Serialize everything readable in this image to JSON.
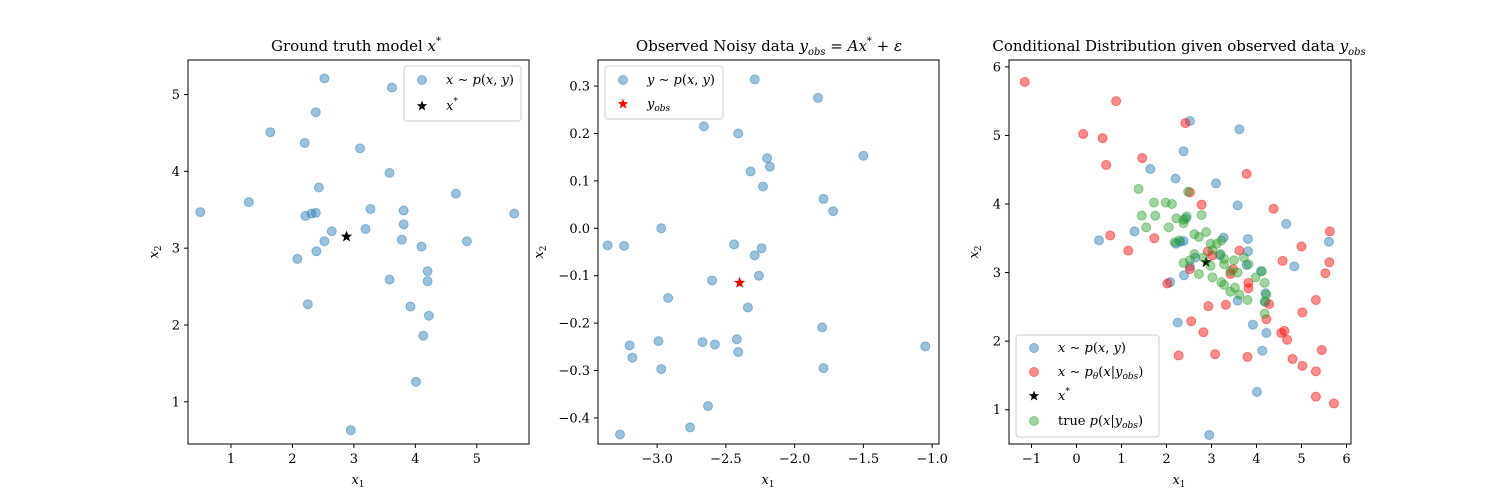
{
  "figure": {
    "background": "#ffffff"
  },
  "chart_data": [
    {
      "type": "scatter",
      "title": "Ground truth model x*",
      "xlabel": "x1",
      "ylabel": "x2",
      "xlim": [
        0.3,
        5.85
      ],
      "ylim": [
        0.45,
        5.45
      ],
      "xticks": [
        1,
        2,
        3,
        4,
        5
      ],
      "yticks": [
        1,
        2,
        3,
        4,
        5
      ],
      "xtick_labels": [
        "1",
        "2",
        "3",
        "4",
        "5"
      ],
      "ytick_labels": [
        "1",
        "2",
        "3",
        "4",
        "5"
      ],
      "legend_position": "top-right",
      "series": [
        {
          "name": "x ~ p(x, y)",
          "marker": "circle",
          "color": "#1f77b4",
          "alpha": 0.45,
          "points": [
            [
              2.52,
              5.21
            ],
            [
              3.62,
              5.09
            ],
            [
              2.38,
              4.77
            ],
            [
              1.64,
              4.51
            ],
            [
              2.2,
              4.37
            ],
            [
              3.1,
              4.3
            ],
            [
              3.58,
              3.98
            ],
            [
              2.43,
              3.79
            ],
            [
              4.66,
              3.71
            ],
            [
              0.5,
              3.47
            ],
            [
              1.29,
              3.6
            ],
            [
              2.38,
              3.46
            ],
            [
              2.31,
              3.45
            ],
            [
              2.21,
              3.42
            ],
            [
              3.27,
              3.51
            ],
            [
              3.81,
              3.49
            ],
            [
              5.61,
              3.45
            ],
            [
              3.81,
              3.31
            ],
            [
              3.19,
              3.25
            ],
            [
              2.64,
              3.22
            ],
            [
              2.52,
              3.09
            ],
            [
              3.78,
              3.11
            ],
            [
              4.84,
              3.09
            ],
            [
              4.1,
              3.02
            ],
            [
              2.39,
              2.96
            ],
            [
              2.08,
              2.86
            ],
            [
              4.2,
              2.7
            ],
            [
              4.2,
              2.57
            ],
            [
              3.58,
              2.59
            ],
            [
              2.25,
              2.27
            ],
            [
              3.92,
              2.24
            ],
            [
              4.22,
              2.12
            ],
            [
              4.13,
              1.86
            ],
            [
              4.01,
              1.26
            ],
            [
              2.95,
              0.63
            ]
          ]
        },
        {
          "name": "x*",
          "marker": "star",
          "color": "#000000",
          "points": [
            [
              2.88,
              3.15
            ]
          ]
        }
      ]
    },
    {
      "type": "scatter",
      "title": "Observed Noisy data y_obs = Ax* + ε",
      "xlabel": "x1",
      "ylabel": "x2",
      "xlim": [
        -3.43,
        -0.95
      ],
      "ylim": [
        -0.455,
        0.355
      ],
      "xticks": [
        -3.0,
        -2.5,
        -2.0,
        -1.5,
        -1.0
      ],
      "yticks": [
        -0.4,
        -0.3,
        -0.2,
        -0.1,
        0.0,
        0.1,
        0.2,
        0.3
      ],
      "xtick_labels": [
        "−3.0",
        "−2.5",
        "−2.0",
        "−1.5",
        "−1.0"
      ],
      "ytick_labels": [
        "−0.4",
        "−0.3",
        "−0.2",
        "−0.1",
        "0.0",
        "0.1",
        "0.2",
        "0.3"
      ],
      "legend_position": "top-left",
      "series": [
        {
          "name": "y ~ p(x, y)",
          "marker": "circle",
          "color": "#1f77b4",
          "alpha": 0.45,
          "points": [
            [
              -2.29,
              0.314
            ],
            [
              -1.83,
              0.275
            ],
            [
              -2.66,
              0.215
            ],
            [
              -2.41,
              0.2
            ],
            [
              -2.2,
              0.148
            ],
            [
              -2.18,
              0.13
            ],
            [
              -1.5,
              0.153
            ],
            [
              -2.32,
              0.12
            ],
            [
              -2.23,
              0.088
            ],
            [
              -1.79,
              0.062
            ],
            [
              -1.72,
              0.036
            ],
            [
              -2.97,
              0.0
            ],
            [
              -3.36,
              -0.036
            ],
            [
              -3.24,
              -0.037
            ],
            [
              -2.44,
              -0.034
            ],
            [
              -2.24,
              -0.042
            ],
            [
              -2.29,
              -0.057
            ],
            [
              -2.26,
              -0.1
            ],
            [
              -2.6,
              -0.11
            ],
            [
              -2.92,
              -0.147
            ],
            [
              -2.34,
              -0.167
            ],
            [
              -1.8,
              -0.209
            ],
            [
              -3.2,
              -0.247
            ],
            [
              -3.18,
              -0.273
            ],
            [
              -2.99,
              -0.238
            ],
            [
              -2.67,
              -0.24
            ],
            [
              -2.58,
              -0.245
            ],
            [
              -2.42,
              -0.234
            ],
            [
              -2.41,
              -0.261
            ],
            [
              -1.05,
              -0.249
            ],
            [
              -2.97,
              -0.297
            ],
            [
              -1.79,
              -0.295
            ],
            [
              -2.63,
              -0.375
            ],
            [
              -2.76,
              -0.42
            ],
            [
              -3.27,
              -0.435
            ]
          ]
        },
        {
          "name": "y_obs",
          "marker": "star",
          "color": "#ff0000",
          "points": [
            [
              -2.4,
              -0.115
            ]
          ]
        }
      ]
    },
    {
      "type": "scatter",
      "title": "Conditional Distribution given observed data y_obs",
      "xlabel": "x1",
      "ylabel": "x2",
      "xlim": [
        -1.5,
        6.1
      ],
      "ylim": [
        0.5,
        6.1
      ],
      "xticks": [
        -1,
        0,
        1,
        2,
        3,
        4,
        5,
        6
      ],
      "yticks": [
        1,
        2,
        3,
        4,
        5,
        6
      ],
      "xtick_labels": [
        "−1",
        "0",
        "1",
        "2",
        "3",
        "4",
        "5",
        "6"
      ],
      "ytick_labels": [
        "1",
        "2",
        "3",
        "4",
        "5",
        "6"
      ],
      "legend_position": "bottom-left",
      "series": [
        {
          "name": "x ~ p(x, y)",
          "marker": "circle",
          "color": "#1f77b4",
          "alpha": 0.45,
          "points": [
            [
              2.52,
              5.21
            ],
            [
              3.62,
              5.09
            ],
            [
              2.38,
              4.77
            ],
            [
              1.64,
              4.51
            ],
            [
              2.2,
              4.37
            ],
            [
              3.1,
              4.3
            ],
            [
              3.58,
              3.98
            ],
            [
              2.43,
              3.79
            ],
            [
              4.66,
              3.71
            ],
            [
              0.5,
              3.47
            ],
            [
              1.29,
              3.6
            ],
            [
              2.38,
              3.46
            ],
            [
              2.31,
              3.45
            ],
            [
              2.21,
              3.42
            ],
            [
              3.27,
              3.51
            ],
            [
              3.81,
              3.49
            ],
            [
              5.61,
              3.45
            ],
            [
              3.81,
              3.31
            ],
            [
              3.19,
              3.25
            ],
            [
              2.64,
              3.22
            ],
            [
              2.52,
              3.09
            ],
            [
              3.78,
              3.11
            ],
            [
              4.84,
              3.09
            ],
            [
              4.1,
              3.02
            ],
            [
              2.39,
              2.96
            ],
            [
              2.08,
              2.86
            ],
            [
              4.2,
              2.7
            ],
            [
              4.2,
              2.57
            ],
            [
              3.58,
              2.59
            ],
            [
              2.25,
              2.27
            ],
            [
              3.92,
              2.24
            ],
            [
              4.22,
              2.12
            ],
            [
              4.13,
              1.86
            ],
            [
              4.01,
              1.26
            ],
            [
              2.95,
              0.63
            ]
          ]
        },
        {
          "name": "x ~ pθ(x|y_obs)",
          "marker": "circle",
          "color": "#ff0000",
          "alpha": 0.45,
          "points": [
            [
              -1.15,
              5.78
            ],
            [
              0.88,
              5.5
            ],
            [
              0.15,
              5.02
            ],
            [
              0.58,
              4.96
            ],
            [
              0.66,
              4.57
            ],
            [
              1.46,
              4.67
            ],
            [
              2.42,
              5.18
            ],
            [
              2.52,
              4.17
            ],
            [
              3.78,
              4.44
            ],
            [
              4.38,
              3.93
            ],
            [
              2.78,
              3.99
            ],
            [
              0.75,
              3.54
            ],
            [
              1.15,
              3.32
            ],
            [
              1.73,
              3.5
            ],
            [
              2.92,
              3.31
            ],
            [
              3.62,
              3.32
            ],
            [
              4.58,
              3.17
            ],
            [
              5.0,
              3.38
            ],
            [
              5.63,
              3.6
            ],
            [
              5.62,
              3.15
            ],
            [
              5.53,
              2.99
            ],
            [
              2.02,
              2.84
            ],
            [
              2.52,
              3.05
            ],
            [
              3.48,
              3.05
            ],
            [
              3.82,
              2.85
            ],
            [
              3.82,
              2.77
            ],
            [
              2.93,
              2.51
            ],
            [
              3.32,
              2.53
            ],
            [
              4.28,
              2.54
            ],
            [
              5.32,
              2.6
            ],
            [
              4.22,
              2.32
            ],
            [
              2.55,
              2.29
            ],
            [
              2.82,
              2.13
            ],
            [
              4.62,
              2.15
            ],
            [
              4.55,
              2.12
            ],
            [
              4.68,
              2.02
            ],
            [
              5.02,
              2.42
            ],
            [
              5.45,
              1.87
            ],
            [
              2.27,
              1.79
            ],
            [
              3.08,
              1.81
            ],
            [
              3.8,
              1.77
            ],
            [
              4.8,
              1.74
            ],
            [
              5.02,
              1.64
            ],
            [
              5.32,
              1.56
            ],
            [
              5.32,
              1.19
            ],
            [
              5.72,
              1.09
            ],
            [
              3.02,
              3.25
            ],
            [
              3.42,
              2.98
            ]
          ]
        },
        {
          "name": "x*",
          "marker": "star",
          "color": "#000000",
          "points": [
            [
              2.88,
              3.15
            ]
          ]
        },
        {
          "name": "true p(x|y_obs)",
          "marker": "circle",
          "color": "#2ca02c",
          "alpha": 0.45,
          "points": [
            [
              1.38,
              4.22
            ],
            [
              1.72,
              4.02
            ],
            [
              1.98,
              4.02
            ],
            [
              2.12,
              4.0
            ],
            [
              2.48,
              4.18
            ],
            [
              2.78,
              3.84
            ],
            [
              1.45,
              3.83
            ],
            [
              1.75,
              3.83
            ],
            [
              2.22,
              3.79
            ],
            [
              2.38,
              3.77
            ],
            [
              2.45,
              3.82
            ],
            [
              1.55,
              3.66
            ],
            [
              2.05,
              3.66
            ],
            [
              2.38,
              3.72
            ],
            [
              2.62,
              3.56
            ],
            [
              2.88,
              3.59
            ],
            [
              3.12,
              3.42
            ],
            [
              3.22,
              3.47
            ],
            [
              2.28,
              3.47
            ],
            [
              2.18,
              3.44
            ],
            [
              2.62,
              3.27
            ],
            [
              2.82,
              3.22
            ],
            [
              3.02,
              3.33
            ],
            [
              3.2,
              3.27
            ],
            [
              2.38,
              3.14
            ],
            [
              2.52,
              3.18
            ],
            [
              2.98,
              3.1
            ],
            [
              3.28,
              3.12
            ],
            [
              3.42,
              3.02
            ],
            [
              3.72,
              3.22
            ],
            [
              3.82,
              3.12
            ],
            [
              3.58,
              3.0
            ],
            [
              2.72,
              2.98
            ],
            [
              3.02,
              2.93
            ],
            [
              3.22,
              2.86
            ],
            [
              3.28,
              2.82
            ],
            [
              3.52,
              2.78
            ],
            [
              3.42,
              2.72
            ],
            [
              3.62,
              2.68
            ],
            [
              3.8,
              2.6
            ],
            [
              3.98,
              2.93
            ],
            [
              4.12,
              3.02
            ],
            [
              4.18,
              2.85
            ],
            [
              4.22,
              2.68
            ],
            [
              4.18,
              2.58
            ],
            [
              4.18,
              2.4
            ],
            [
              2.72,
              3.52
            ],
            [
              2.98,
              3.42
            ],
            [
              3.28,
              3.2
            ],
            [
              3.5,
              3.18
            ]
          ]
        }
      ]
    }
  ]
}
